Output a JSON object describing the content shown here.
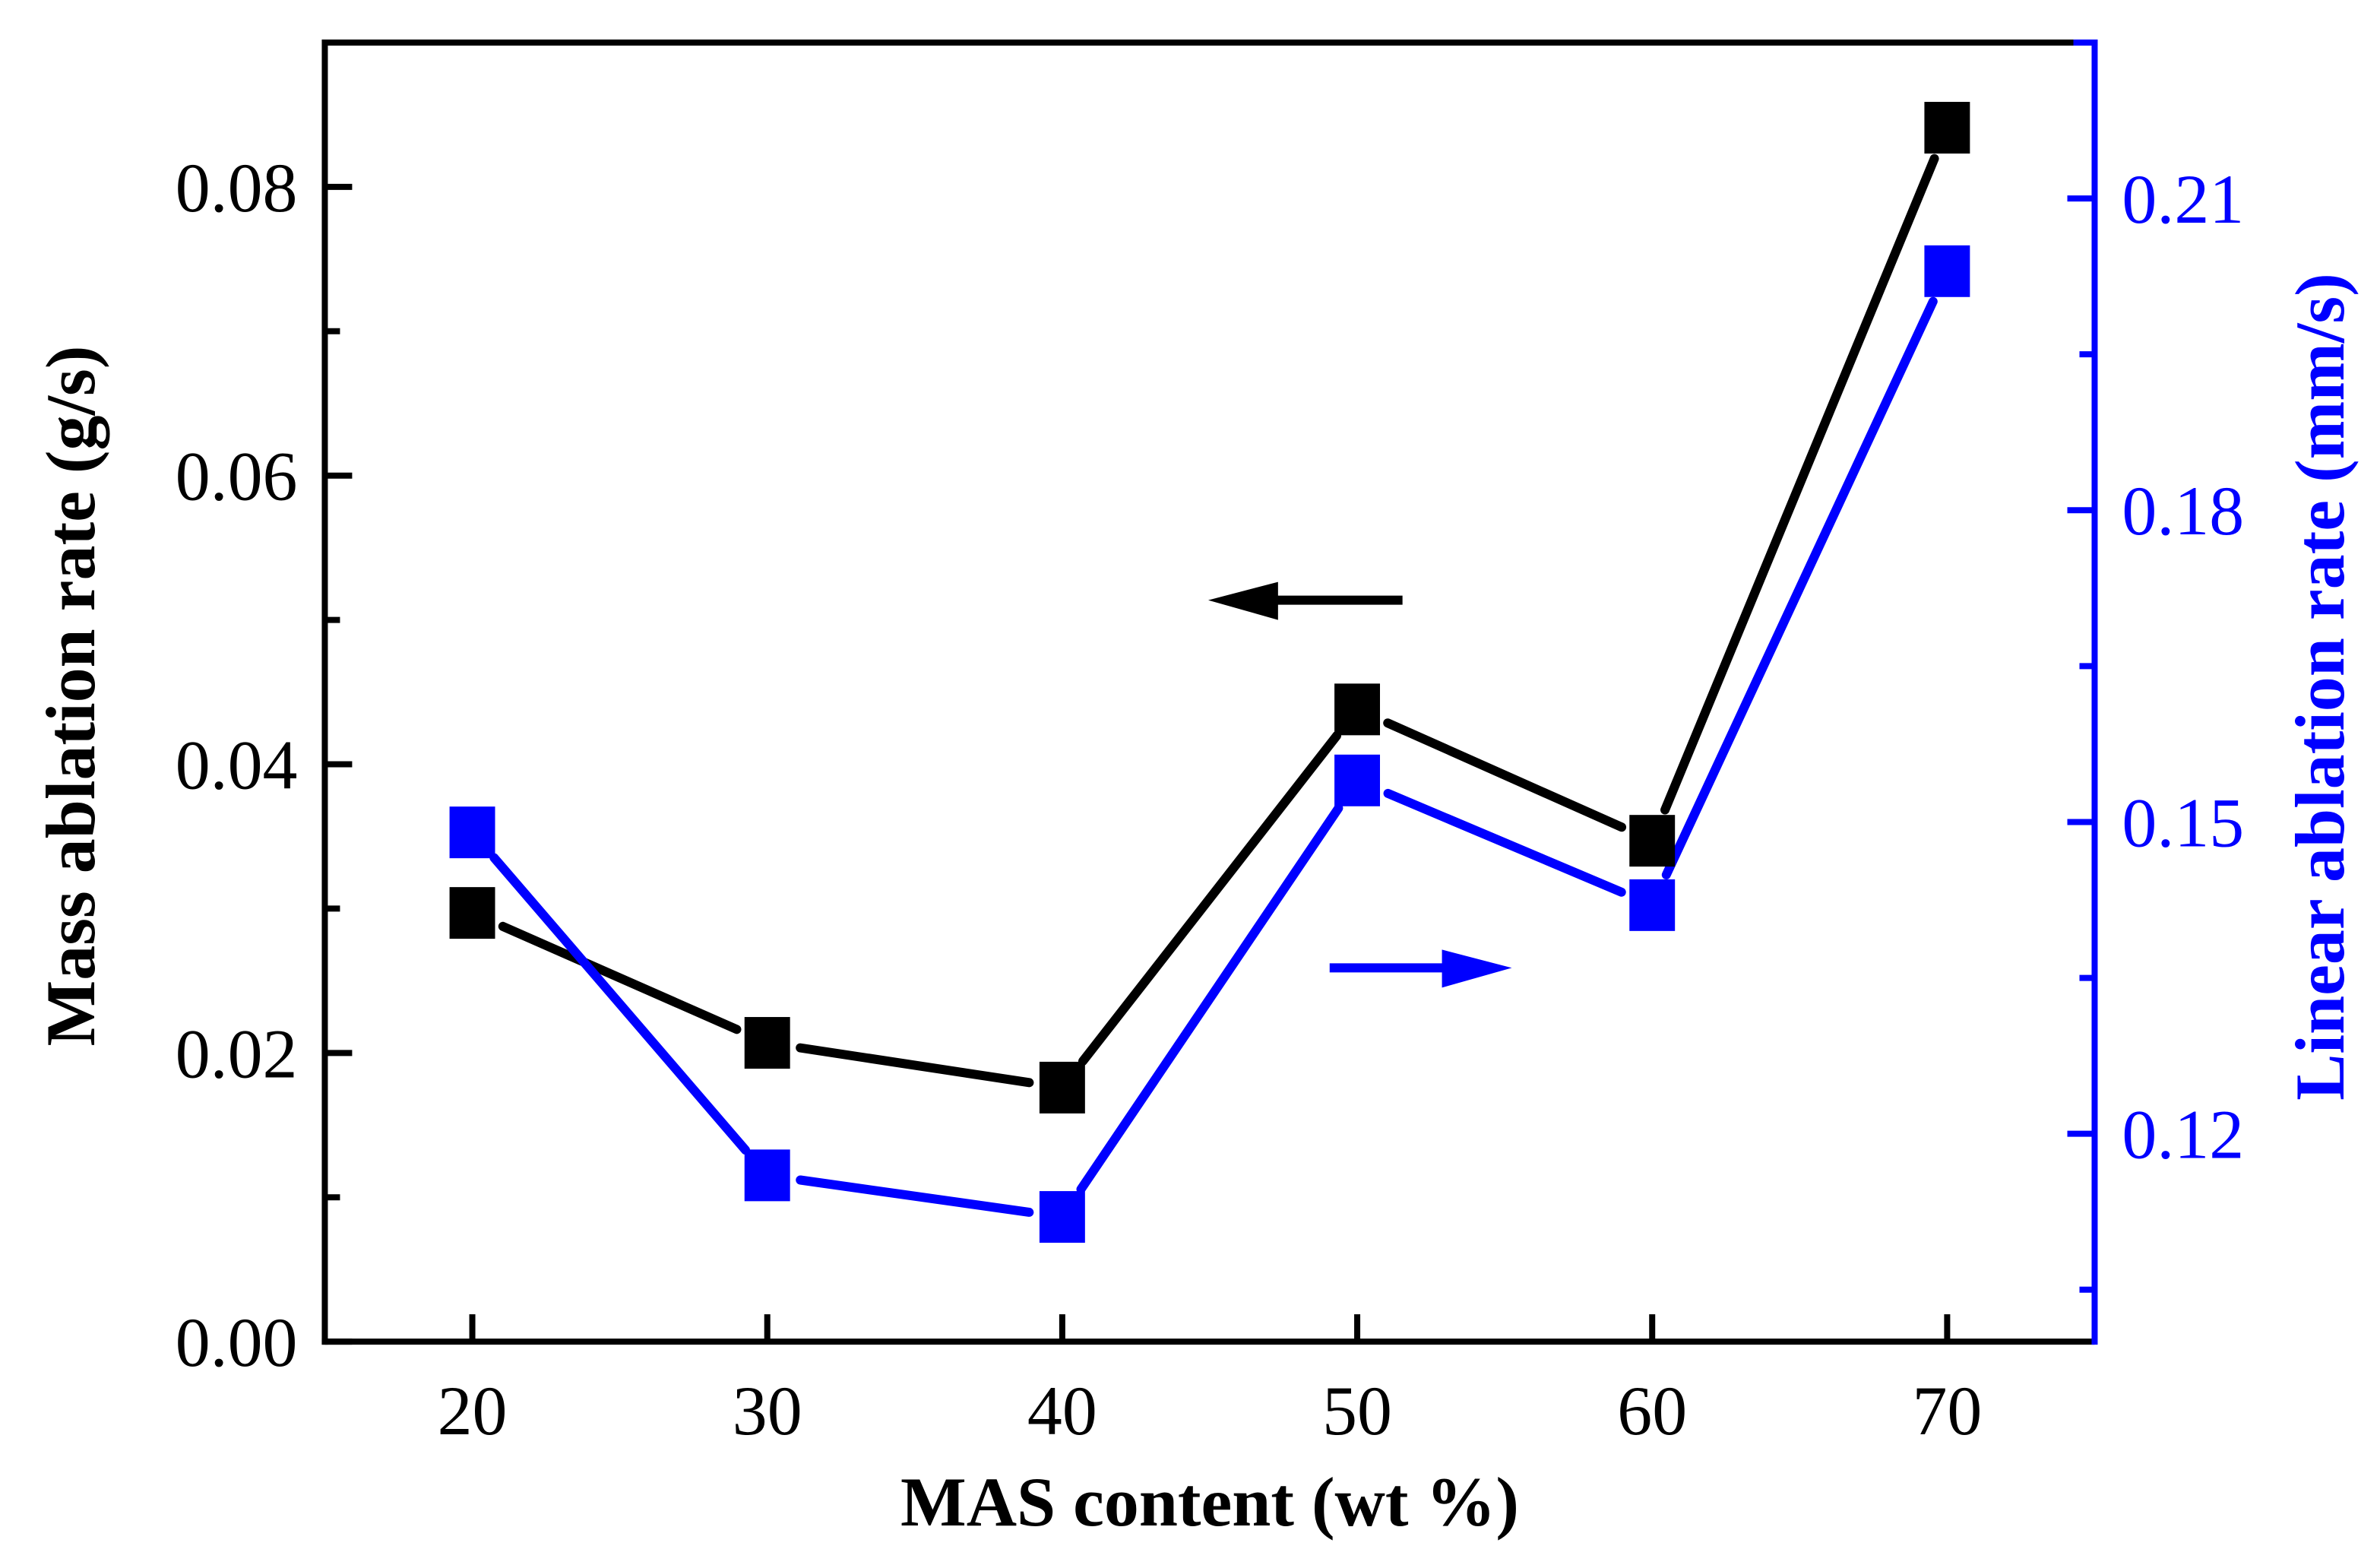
{
  "chart_data": {
    "type": "line",
    "title": "",
    "xlabel": "MAS content (wt %)",
    "ylabel": "Mass ablation rate (g/s)",
    "y2label": "Linear ablation rate (mm/s)",
    "x": [
      20,
      30,
      40,
      50,
      60,
      70
    ],
    "x_ticks": [
      "20",
      "30",
      "40",
      "50",
      "60",
      "70"
    ],
    "xlim": [
      15,
      75
    ],
    "ylim": [
      0,
      0.09
    ],
    "y_ticks": [
      "0.00",
      "0.02",
      "0.04",
      "0.06",
      "0.08"
    ],
    "y2lim": [
      0.1,
      0.225
    ],
    "y2_ticks": [
      "0.12",
      "0.15",
      "0.18",
      "0.21"
    ],
    "grid": false,
    "series": [
      {
        "name": "Mass ablation rate",
        "axis": "left",
        "color": "#000000",
        "marker": "square",
        "values": [
          0.0297,
          0.0207,
          0.0176,
          0.0438,
          0.0347,
          0.0841
        ]
      },
      {
        "name": "Linear ablation rate",
        "axis": "right",
        "color": "#0000ff",
        "marker": "square",
        "values": [
          0.149,
          0.116,
          0.112,
          0.154,
          0.142,
          0.203
        ]
      }
    ],
    "annotations": [
      {
        "type": "arrow",
        "direction": "left",
        "color": "#000000",
        "refers_to": "left axis"
      },
      {
        "type": "arrow",
        "direction": "right",
        "color": "#0000ff",
        "refers_to": "right axis"
      }
    ]
  }
}
